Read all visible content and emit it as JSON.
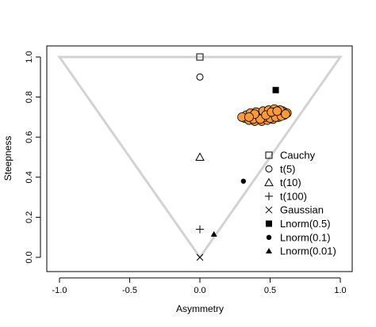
{
  "chart_data": {
    "type": "scatter",
    "xlabel": "Asymmetry",
    "ylabel": "Steepness",
    "xlim": [
      -1.0,
      1.0
    ],
    "ylim": [
      0.0,
      1.0
    ],
    "x_ticks": [
      -1.0,
      -0.5,
      0.0,
      0.5,
      1.0
    ],
    "x_tick_labels": [
      "-1.0",
      "-0.5",
      "0.0",
      "0.5",
      "1.0"
    ],
    "y_ticks": [
      0.0,
      0.2,
      0.4,
      0.6,
      0.8,
      1.0
    ],
    "y_tick_labels": [
      "0.0",
      "0.2",
      "0.4",
      "0.6",
      "0.8",
      "1.0"
    ],
    "grid": false,
    "legend_position": "right",
    "boundary": {
      "color": "#d3d3d3",
      "points": [
        [
          -1.0,
          1.0
        ],
        [
          1.0,
          1.0
        ],
        [
          0.0,
          0.0
        ]
      ]
    },
    "reference_points": [
      {
        "name": "Cauchy",
        "symbol": "square-open",
        "x": 0.0,
        "y": 1.0
      },
      {
        "name": "t(5)",
        "symbol": "circle-open",
        "x": 0.0,
        "y": 0.9
      },
      {
        "name": "t(10)",
        "symbol": "triangle-open",
        "x": 0.0,
        "y": 0.5
      },
      {
        "name": "t(100)",
        "symbol": "plus",
        "x": 0.0,
        "y": 0.14
      },
      {
        "name": "Gaussian",
        "symbol": "cross",
        "x": 0.0,
        "y": 0.0
      },
      {
        "name": "Lnorm(0.5)",
        "symbol": "square-filled",
        "x": 0.54,
        "y": 0.835
      },
      {
        "name": "Lnorm(0.1)",
        "symbol": "circle-filled",
        "x": 0.31,
        "y": 0.38
      },
      {
        "name": "Lnorm(0.01)",
        "symbol": "triangle-filled",
        "x": 0.1,
        "y": 0.115
      }
    ],
    "cluster": {
      "fill_color": "#ff9933",
      "stroke_color": "#000000",
      "points": [
        [
          0.32,
          0.695
        ],
        [
          0.34,
          0.705
        ],
        [
          0.36,
          0.69
        ],
        [
          0.38,
          0.7
        ],
        [
          0.4,
          0.71
        ],
        [
          0.42,
          0.695
        ],
        [
          0.44,
          0.705
        ],
        [
          0.46,
          0.715
        ],
        [
          0.48,
          0.7
        ],
        [
          0.5,
          0.71
        ],
        [
          0.52,
          0.72
        ],
        [
          0.54,
          0.715
        ],
        [
          0.56,
          0.725
        ],
        [
          0.58,
          0.72
        ],
        [
          0.6,
          0.725
        ],
        [
          0.35,
          0.685
        ],
        [
          0.37,
          0.71
        ],
        [
          0.39,
          0.68
        ],
        [
          0.41,
          0.7
        ],
        [
          0.43,
          0.72
        ],
        [
          0.45,
          0.69
        ],
        [
          0.47,
          0.695
        ],
        [
          0.49,
          0.72
        ],
        [
          0.51,
          0.7
        ],
        [
          0.53,
          0.73
        ],
        [
          0.55,
          0.705
        ],
        [
          0.57,
          0.71
        ],
        [
          0.59,
          0.73
        ],
        [
          0.33,
          0.71
        ],
        [
          0.36,
          0.72
        ],
        [
          0.4,
          0.725
        ],
        [
          0.44,
          0.68
        ],
        [
          0.48,
          0.685
        ],
        [
          0.52,
          0.69
        ],
        [
          0.56,
          0.7
        ],
        [
          0.6,
          0.71
        ],
        [
          0.62,
          0.72
        ],
        [
          0.38,
          0.69
        ],
        [
          0.42,
          0.705
        ],
        [
          0.46,
          0.7
        ],
        [
          0.5,
          0.695
        ],
        [
          0.54,
          0.7
        ],
        [
          0.58,
          0.705
        ],
        [
          0.45,
          0.73
        ],
        [
          0.49,
          0.735
        ],
        [
          0.53,
          0.74
        ],
        [
          0.57,
          0.735
        ],
        [
          0.3,
          0.7
        ],
        [
          0.43,
          0.69
        ],
        [
          0.47,
          0.71
        ],
        [
          0.51,
          0.725
        ],
        [
          0.55,
          0.73
        ],
        [
          0.39,
          0.715
        ],
        [
          0.35,
          0.7
        ],
        [
          0.61,
          0.715
        ]
      ]
    }
  }
}
